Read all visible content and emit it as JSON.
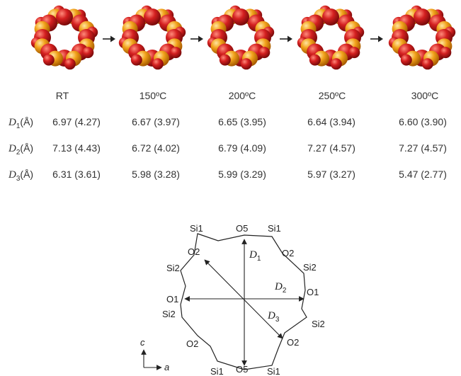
{
  "table": {
    "columns": [
      "RT",
      "150ºC",
      "200ºC",
      "250ºC",
      "300ºC"
    ],
    "rows": [
      {
        "sym": "D",
        "sub": "1",
        "unit": "(Å)",
        "values": [
          "6.97 (4.27)",
          "6.67 (3.97)",
          "6.65 (3.95)",
          "6.64 (3.94)",
          "6.60 (3.90)"
        ]
      },
      {
        "sym": "D",
        "sub": "2",
        "unit": "(Å)",
        "values": [
          "7.13 (4.43)",
          "6.72 (4.02)",
          "6.79 (4.09)",
          "7.27 (4.57)",
          "7.27 (4.57)"
        ]
      },
      {
        "sym": "D",
        "sub": "3",
        "unit": "(Å)",
        "values": [
          "6.31 (3.61)",
          "5.98 (3.28)",
          "5.99 (3.29)",
          "5.97 (3.27)",
          "5.47 (2.77)"
        ]
      }
    ]
  },
  "diagram": {
    "labels": {
      "si1_tl": "Si1",
      "o5_top": "O5",
      "si1_tr": "Si1",
      "o2_tl": "O2",
      "o2_tr": "O2",
      "si2_l": "Si2",
      "si2_tr": "Si2",
      "o1_l": "O1",
      "o1_r": "O1",
      "si2_bl": "Si2",
      "si2_br": "Si2",
      "o2_bl": "O2",
      "o2_br": "O2",
      "si1_bl": "Si1",
      "o5_bot": "O5",
      "si1_br": "Si1"
    },
    "d1": {
      "sym": "D",
      "sub": "1"
    },
    "d2": {
      "sym": "D",
      "sub": "2"
    },
    "d3": {
      "sym": "D",
      "sub": "3"
    },
    "axis_c": "c",
    "axis_a": "a"
  },
  "colors": {
    "oxygen": "#d42020",
    "silicon": "#f2a21b"
  }
}
